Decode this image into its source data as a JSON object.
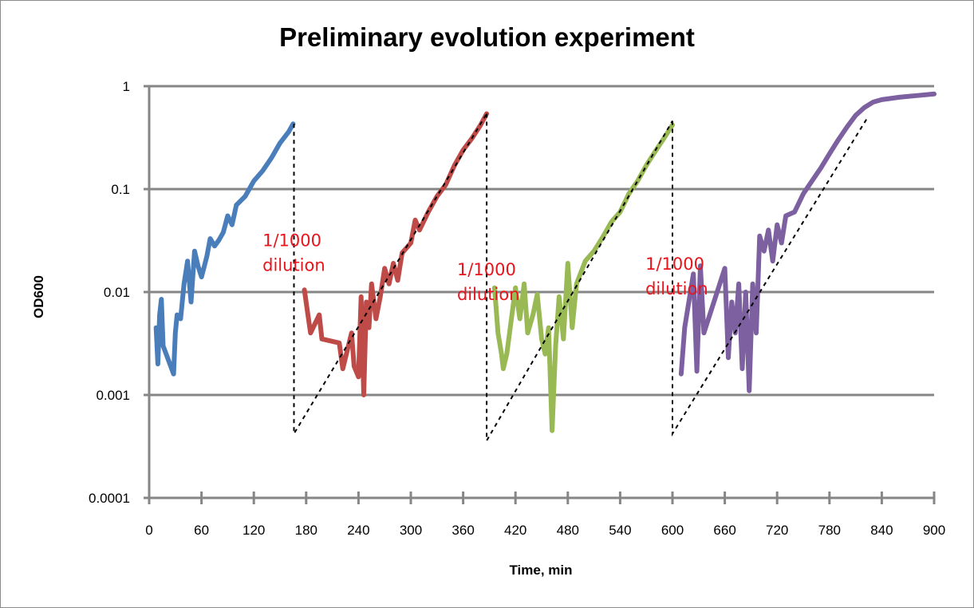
{
  "chart_data": {
    "type": "line",
    "title": "Preliminary evolution experiment",
    "xlabel": "Time, min",
    "ylabel": "OD600",
    "xlim": [
      0,
      900
    ],
    "ylim": [
      0.0001,
      1
    ],
    "y_scale": "log",
    "grid": "horizontal",
    "legend": "none",
    "x_ticks": [
      "0",
      "60",
      "120",
      "180",
      "240",
      "300",
      "360",
      "420",
      "480",
      "540",
      "600",
      "660",
      "720",
      "780",
      "840",
      "900"
    ],
    "y_ticks": [
      "0.0001",
      "0.001",
      "0.01",
      "0.1",
      "1"
    ],
    "series": [
      {
        "color": "#4a7ebb",
        "x": [
          8,
          10,
          12,
          14,
          16,
          28,
          30,
          32,
          36,
          40,
          44,
          48,
          52,
          56,
          60,
          66,
          70,
          75,
          80,
          85,
          90,
          95,
          100,
          110,
          120,
          130,
          140,
          150,
          160,
          165
        ],
        "y": [
          0.0045,
          0.002,
          0.006,
          0.0085,
          0.003,
          0.0016,
          0.004,
          0.006,
          0.0055,
          0.012,
          0.02,
          0.008,
          0.025,
          0.018,
          0.014,
          0.022,
          0.033,
          0.028,
          0.032,
          0.038,
          0.055,
          0.045,
          0.07,
          0.085,
          0.12,
          0.15,
          0.2,
          0.28,
          0.36,
          0.43
        ]
      },
      {
        "color": "#be4b48",
        "x": [
          178,
          182,
          185,
          195,
          198,
          218,
          222,
          232,
          235,
          240,
          243,
          246,
          249,
          252,
          255,
          260,
          265,
          270,
          275,
          280,
          285,
          290,
          300,
          305,
          310,
          320,
          330,
          340,
          350,
          360,
          370,
          380,
          387
        ],
        "y": [
          0.0105,
          0.006,
          0.004,
          0.006,
          0.0035,
          0.0032,
          0.0018,
          0.004,
          0.0019,
          0.0015,
          0.009,
          0.001,
          0.008,
          0.0045,
          0.012,
          0.0055,
          0.009,
          0.017,
          0.012,
          0.019,
          0.013,
          0.024,
          0.03,
          0.05,
          0.04,
          0.06,
          0.085,
          0.11,
          0.17,
          0.24,
          0.31,
          0.42,
          0.54
        ]
      },
      {
        "color": "#98b954",
        "x": [
          396,
          400,
          404,
          406,
          410,
          420,
          425,
          430,
          434,
          440,
          445,
          450,
          454,
          458,
          462,
          466,
          470,
          475,
          480,
          485,
          490,
          500,
          510,
          520,
          530,
          540,
          550,
          560,
          570,
          580,
          590,
          600
        ],
        "y": [
          0.011,
          0.004,
          0.0025,
          0.0018,
          0.0025,
          0.011,
          0.0055,
          0.012,
          0.004,
          0.006,
          0.0095,
          0.0035,
          0.0025,
          0.0045,
          0.00045,
          0.003,
          0.009,
          0.0035,
          0.019,
          0.0045,
          0.012,
          0.02,
          0.025,
          0.034,
          0.048,
          0.06,
          0.09,
          0.12,
          0.17,
          0.23,
          0.31,
          0.42
        ]
      },
      {
        "color": "#7d60a0",
        "x": [
          610,
          614,
          624,
          628,
          632,
          636,
          660,
          664,
          668,
          672,
          676,
          680,
          684,
          688,
          692,
          696,
          700,
          705,
          710,
          715,
          720,
          725,
          730,
          740,
          750,
          760,
          770,
          780,
          790,
          800,
          810,
          820,
          830,
          840,
          860,
          880,
          900
        ],
        "y": [
          0.0016,
          0.0045,
          0.015,
          0.0017,
          0.018,
          0.004,
          0.017,
          0.0023,
          0.008,
          0.004,
          0.012,
          0.0018,
          0.01,
          0.0011,
          0.012,
          0.004,
          0.035,
          0.025,
          0.04,
          0.02,
          0.045,
          0.03,
          0.055,
          0.06,
          0.09,
          0.12,
          0.16,
          0.22,
          0.3,
          0.4,
          0.52,
          0.62,
          0.7,
          0.74,
          0.78,
          0.81,
          0.84
        ]
      }
    ],
    "dilution_guides": [
      {
        "x": [
          166,
          166,
          387
        ],
        "y": [
          0.43,
          0.00042,
          0.54
        ]
      },
      {
        "x": [
          387,
          387,
          600
        ],
        "y": [
          0.54,
          0.00036,
          0.46
        ]
      },
      {
        "x": [
          600,
          600,
          824
        ],
        "y": [
          0.46,
          0.00042,
          0.5
        ]
      }
    ],
    "annotations": [
      {
        "text": [
          "1/1000",
          "dilution"
        ],
        "x": 130,
        "y": 0.028
      },
      {
        "text": [
          "1/1000",
          "dilution"
        ],
        "x": 353,
        "y": 0.0145
      },
      {
        "text": [
          "1/1000",
          "dilution"
        ],
        "x": 569,
        "y": 0.0165
      }
    ]
  }
}
